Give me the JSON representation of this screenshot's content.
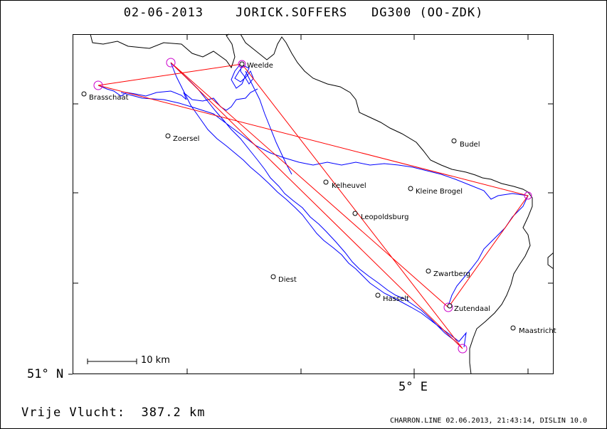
{
  "header": {
    "date": "02-06-2013",
    "pilot": "JORICK.SOFFERS",
    "aircraft": "DG300 (OO-ZDK)"
  },
  "axes": {
    "lat_label": "51° N",
    "lon_label": "5° E"
  },
  "scale_bar": {
    "label": "10 km"
  },
  "footer": {
    "distance_label": "Vrije Vlucht:",
    "distance_value": "387.2 km"
  },
  "credit": "CHARRON.LINE 02.06.2013, 21:43:14, DISLIN 10.0",
  "places": [
    {
      "name": "Weelde",
      "id": "place-weelde"
    },
    {
      "name": "Brasschaat",
      "id": "place-brasschaat"
    },
    {
      "name": "Zoersel",
      "id": "place-zoersel"
    },
    {
      "name": "Budel",
      "id": "place-budel"
    },
    {
      "name": "Kelheuvel",
      "id": "place-kelheuvel"
    },
    {
      "name": "Kleine Brogel",
      "id": "place-kleine-brogel"
    },
    {
      "name": "Leopoldsburg",
      "id": "place-leopoldsburg"
    },
    {
      "name": "Zwartberg",
      "id": "place-zwartberg"
    },
    {
      "name": "Diest",
      "id": "place-diest"
    },
    {
      "name": "Hasselt",
      "id": "place-hasselt"
    },
    {
      "name": "Zutendaal",
      "id": "place-zutendaal"
    },
    {
      "name": "Maastricht",
      "id": "place-maastricht"
    }
  ],
  "colors": {
    "task_line": "#ff0000",
    "track_line": "#0000ff",
    "turnpoint": "#cc00cc",
    "border": "#000000"
  }
}
